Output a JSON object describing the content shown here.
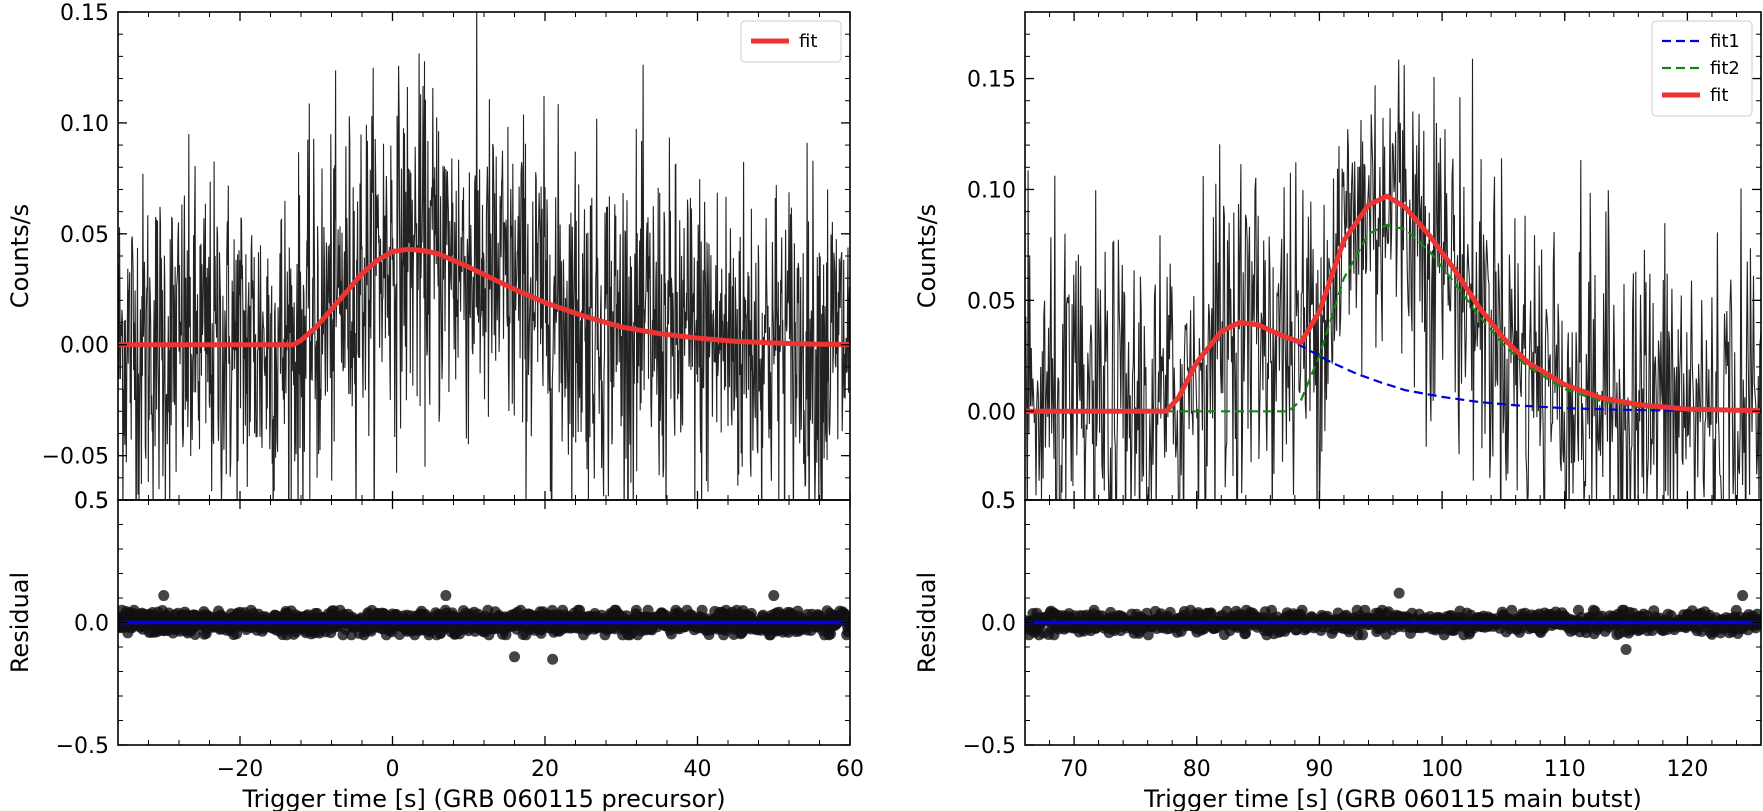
{
  "chart_data": [
    {
      "panel": "left-top",
      "type": "line",
      "xlabel": "",
      "ylabel": "Counts/s",
      "xlim": [
        -36,
        60
      ],
      "ylim": [
        -0.07,
        0.15
      ],
      "xticks": [
        -20,
        0,
        20,
        40,
        60
      ],
      "yticks": [
        -0.05,
        0.0,
        0.05,
        0.1,
        0.15
      ],
      "ytick_labels": [
        "−0.05",
        "0.00",
        "0.05",
        "0.10",
        "0.15"
      ],
      "legend_position": "top-right",
      "series": [
        {
          "name": "fit",
          "role": "fit",
          "color": "#ee3333",
          "x": [
            -36,
            -20,
            -13,
            -12,
            -10,
            -8,
            -6,
            -4,
            -2,
            0,
            2,
            4,
            6,
            8,
            10,
            13,
            16,
            20,
            25,
            30,
            35,
            40,
            45,
            50,
            55,
            60
          ],
          "values": [
            0.0,
            0.0,
            0.0,
            0.002,
            0.008,
            0.016,
            0.024,
            0.032,
            0.038,
            0.042,
            0.043,
            0.0425,
            0.041,
            0.038,
            0.035,
            0.03,
            0.025,
            0.019,
            0.013,
            0.008,
            0.005,
            0.003,
            0.0015,
            0.0008,
            0.0003,
            0.0001
          ]
        }
      ]
    },
    {
      "panel": "left-bottom",
      "type": "scatter",
      "xlabel": "Trigger time [s] (GRB 060115 precursor)",
      "ylabel": "Residual",
      "xlim": [
        -36,
        60
      ],
      "ylim": [
        -0.5,
        0.5
      ],
      "xticks": [
        -20,
        0,
        20,
        40,
        60
      ],
      "xtick_labels": [
        "−20",
        "0",
        "20",
        "40",
        "60"
      ],
      "yticks": [
        -0.5,
        0.0,
        0.5
      ],
      "ytick_labels": [
        "−0.5",
        "0.0",
        "0.5"
      ],
      "zero_line_color": "#0000ee",
      "residual_band": [
        -0.05,
        0.05
      ],
      "outliers": [
        {
          "x": 7,
          "y": 0.11
        },
        {
          "x": 16,
          "y": -0.14
        },
        {
          "x": 21,
          "y": -0.15
        },
        {
          "x": 50,
          "y": 0.11
        },
        {
          "x": -30,
          "y": 0.11
        }
      ]
    },
    {
      "panel": "right-top",
      "type": "line",
      "xlabel": "",
      "ylabel": "Counts/s",
      "xlim": [
        66,
        126
      ],
      "ylim": [
        -0.04,
        0.18
      ],
      "xticks": [
        70,
        80,
        90,
        100,
        110,
        120
      ],
      "yticks": [
        0.0,
        0.05,
        0.1,
        0.15
      ],
      "ytick_labels": [
        "0.00",
        "0.05",
        "0.10",
        "0.15"
      ],
      "legend_position": "top-right",
      "series": [
        {
          "name": "fit1",
          "role": "component",
          "color": "#0000dd",
          "x": [
            66,
            77.5,
            78.5,
            80,
            82,
            83.5,
            85,
            87,
            89,
            91,
            93,
            95,
            97,
            100,
            103,
            106,
            110,
            115,
            120,
            126
          ],
          "values": [
            0.0,
            0.0,
            0.006,
            0.022,
            0.036,
            0.04,
            0.039,
            0.034,
            0.028,
            0.022,
            0.017,
            0.013,
            0.0095,
            0.0065,
            0.0042,
            0.0027,
            0.0014,
            0.0006,
            0.0002,
            0.0001
          ]
        },
        {
          "name": "fit2",
          "role": "component",
          "color": "#118811",
          "x": [
            66,
            87.5,
            88.5,
            90,
            92,
            94,
            95.5,
            97,
            99,
            101,
            103,
            105,
            107,
            110,
            113,
            116,
            120,
            126
          ],
          "values": [
            0.0,
            0.0,
            0.005,
            0.025,
            0.06,
            0.08,
            0.084,
            0.082,
            0.072,
            0.058,
            0.043,
            0.03,
            0.02,
            0.01,
            0.0045,
            0.002,
            0.0006,
            0.0001
          ]
        },
        {
          "name": "fit",
          "role": "fit",
          "color": "#ee3333",
          "x": [
            66,
            77.5,
            78.5,
            80,
            82,
            83.5,
            85,
            87,
            88.5,
            90,
            92,
            94,
            95.5,
            97,
            99,
            101,
            103,
            105,
            107,
            110,
            113,
            116,
            120,
            126
          ],
          "values": [
            0.0,
            0.0,
            0.006,
            0.022,
            0.036,
            0.04,
            0.039,
            0.034,
            0.031,
            0.045,
            0.077,
            0.093,
            0.097,
            0.092,
            0.079,
            0.064,
            0.047,
            0.033,
            0.022,
            0.012,
            0.006,
            0.003,
            0.001,
            0.0002
          ]
        }
      ]
    },
    {
      "panel": "right-bottom",
      "type": "scatter",
      "xlabel": "Trigger time [s] (GRB 060115 main butst)",
      "ylabel": "Residual",
      "xlim": [
        66,
        126
      ],
      "ylim": [
        -0.5,
        0.5
      ],
      "xticks": [
        70,
        80,
        90,
        100,
        110,
        120
      ],
      "xtick_labels": [
        "70",
        "80",
        "90",
        "100",
        "110",
        "120"
      ],
      "yticks": [
        -0.5,
        0.0,
        0.5
      ],
      "ytick_labels": [
        "−0.5",
        "0.0",
        "0.5"
      ],
      "zero_line_color": "#0000ee",
      "residual_band": [
        -0.05,
        0.05
      ],
      "outliers": [
        {
          "x": 96.5,
          "y": 0.12
        },
        {
          "x": 115,
          "y": -0.11
        },
        {
          "x": 124.5,
          "y": 0.11
        }
      ]
    }
  ],
  "overflow_label": "0.5"
}
